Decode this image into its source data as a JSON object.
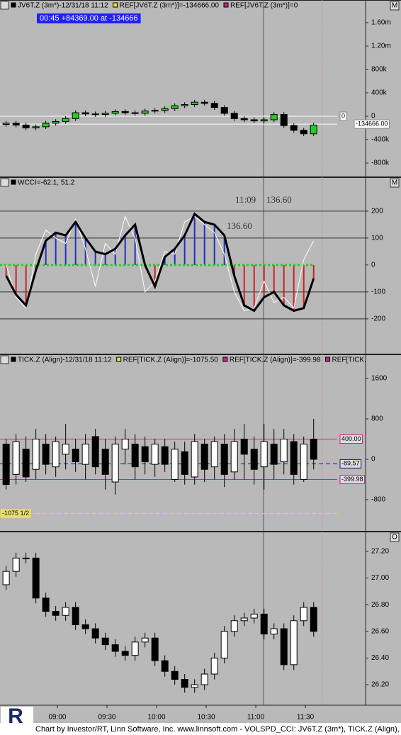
{
  "chart_data": [
    {
      "type": "candlestick",
      "header": [
        "JV6T.Z (3m*)-12/31/18 11:12",
        "REF[JV6T.Z (3m*)]=-134666.00",
        "REF[JV6T.Z (3m*)]=0"
      ],
      "status": "00:45  +84369.00 at -134666",
      "corner": "M",
      "xlim": [
        505.3,
        726.4
      ],
      "x": [
        509,
        515,
        521,
        527,
        533,
        539,
        545,
        551,
        557,
        563,
        569,
        575,
        581,
        587,
        593,
        599,
        605,
        611,
        617,
        623,
        629,
        635,
        641,
        647,
        653,
        659,
        665,
        671,
        677,
        683,
        689,
        695
      ],
      "open": [
        -140000,
        -120000,
        -150000,
        -200000,
        -180000,
        -120000,
        -90000,
        -40000,
        60000,
        40000,
        30000,
        50000,
        80000,
        60000,
        50000,
        90000,
        100000,
        130000,
        180000,
        200000,
        240000,
        220000,
        150000,
        50000,
        -40000,
        -60000,
        -80000,
        -60000,
        30000,
        -160000,
        -240000,
        -300000
      ],
      "high": [
        -80000,
        -80000,
        -110000,
        -140000,
        -80000,
        -50000,
        0,
        100000,
        100000,
        80000,
        90000,
        120000,
        120000,
        100000,
        130000,
        140000,
        170000,
        220000,
        240000,
        280000,
        280000,
        260000,
        190000,
        90000,
        0,
        -20000,
        -20000,
        70000,
        70000,
        -120000,
        -200000,
        -110000
      ],
      "low": [
        -180000,
        -190000,
        -240000,
        -240000,
        -220000,
        -160000,
        -130000,
        -80000,
        0,
        -10000,
        -10000,
        10000,
        20000,
        10000,
        10000,
        50000,
        60000,
        90000,
        140000,
        160000,
        180000,
        110000,
        10000,
        -80000,
        -100000,
        -120000,
        -120000,
        -100000,
        -200000,
        -280000,
        -340000,
        -340000
      ],
      "close": [
        -120000,
        -150000,
        -200000,
        -180000,
        -120000,
        -90000,
        -40000,
        60000,
        40000,
        30000,
        50000,
        80000,
        60000,
        50000,
        90000,
        100000,
        130000,
        180000,
        200000,
        240000,
        220000,
        150000,
        50000,
        -40000,
        -60000,
        -80000,
        -60000,
        30000,
        -160000,
        -240000,
        -300000,
        -150000
      ],
      "up_color": "#22cc22",
      "down_color": "#000000",
      "ylim": [
        -1042000,
        1818000
      ],
      "yticks": [
        {
          "value": 1600000,
          "label": "1.60m"
        },
        {
          "value": 1200000,
          "label": "1.20m"
        },
        {
          "value": 800000,
          "label": "800k"
        },
        {
          "value": 400000,
          "label": "400k"
        },
        0,
        {
          "value": -400000,
          "label": "-400k"
        },
        {
          "value": -800000,
          "label": "-800k"
        }
      ],
      "ref_lines": [
        {
          "value": 0,
          "label": "0",
          "color": "#ffffff"
        },
        {
          "value": -134666,
          "label": "-134666.00",
          "color": "#ffffff"
        }
      ]
    },
    {
      "type": "cci",
      "header": [
        "WCCI=-62.1,  51.2"
      ],
      "corner": "M",
      "annotations": [
        "11:09",
        "136.60",
        "136.60"
      ],
      "xlim": [
        505.3,
        726.4
      ],
      "x": [
        509,
        515,
        521,
        527,
        533,
        539,
        545,
        551,
        557,
        563,
        569,
        575,
        581,
        587,
        593,
        599,
        605,
        611,
        617,
        623,
        629,
        635,
        641,
        647,
        653,
        659,
        665,
        671,
        677,
        683,
        689,
        695
      ],
      "series": [
        {
          "name": "WCCI",
          "color": "#000000",
          "values": [
            -40,
            -110,
            -150,
            -20,
            90,
            120,
            110,
            160,
            100,
            50,
            40,
            60,
            110,
            150,
            0,
            -80,
            30,
            60,
            110,
            190,
            160,
            150,
            110,
            -40,
            -150,
            -170,
            -120,
            -100,
            -150,
            -170,
            -160,
            -50
          ]
        },
        {
          "name": "CCI",
          "color": "#ffffff",
          "values": [
            0,
            -120,
            -160,
            40,
            130,
            100,
            80,
            170,
            60,
            -80,
            80,
            40,
            180,
            100,
            -100,
            -60,
            50,
            40,
            160,
            180,
            150,
            120,
            40,
            -100,
            -170,
            -160,
            -60,
            -140,
            -120,
            -160,
            20,
            90
          ]
        }
      ],
      "pos_color": "#2030c0",
      "neg_color": "#d02020",
      "ylim": [
        -332,
        284
      ],
      "yticks": [
        200,
        100,
        0,
        -100,
        -200
      ]
    },
    {
      "type": "candlestick",
      "header": [
        "TICK.Z (Align)-12/31/18 11:12",
        "REF[TICK.Z (Align)]=-1075.50",
        "REF[TICK.Z (Align)]=-399.98",
        "REF[TICK."
      ],
      "xlim": [
        505.3,
        726.4
      ],
      "x": [
        509,
        515,
        521,
        527,
        533,
        539,
        545,
        551,
        557,
        563,
        569,
        575,
        581,
        587,
        593,
        599,
        605,
        611,
        617,
        623,
        629,
        635,
        641,
        647,
        653,
        659,
        665,
        671,
        677,
        683,
        689,
        695
      ],
      "open": [
        300,
        -300,
        200,
        -200,
        300,
        -150,
        100,
        200,
        -100,
        450,
        200,
        -450,
        200,
        300,
        250,
        -100,
        250,
        -400,
        150,
        -350,
        300,
        -150,
        300,
        -250,
        400,
        200,
        -150,
        300,
        -50,
        350,
        -400,
        400
      ],
      "high": [
        400,
        500,
        450,
        600,
        500,
        450,
        700,
        400,
        500,
        600,
        400,
        450,
        600,
        500,
        450,
        400,
        400,
        350,
        350,
        500,
        400,
        450,
        500,
        600,
        700,
        450,
        700,
        600,
        600,
        500,
        450,
        800
      ],
      "low": [
        -600,
        -500,
        -450,
        -400,
        -300,
        -350,
        -200,
        -250,
        -400,
        -300,
        -600,
        -700,
        -100,
        -400,
        -300,
        -350,
        -250,
        -450,
        -500,
        -500,
        -450,
        -400,
        -550,
        -400,
        -400,
        -500,
        -600,
        -400,
        -300,
        -500,
        -450,
        -200
      ],
      "close": [
        -500,
        350,
        -350,
        400,
        -100,
        350,
        300,
        -50,
        300,
        -150,
        -300,
        300,
        400,
        -150,
        -50,
        300,
        -100,
        200,
        -300,
        350,
        -200,
        350,
        -300,
        350,
        100,
        -200,
        350,
        -100,
        400,
        -300,
        300,
        0
      ],
      "up_color": "#ffffff",
      "down_color": "#000000",
      "ylim": [
        -1432,
        1881
      ],
      "yticks": [
        1600,
        800,
        0,
        -800
      ],
      "ref_lines": [
        {
          "value": 400,
          "label": "400.00",
          "color": "#d0208a"
        },
        {
          "value": -89.57,
          "label": "-89.57",
          "color": "#1010a0"
        },
        {
          "value": -399.98,
          "label": "-399.98",
          "color": "#d0208a"
        },
        {
          "value": -1075.5,
          "label": "-1075 1/2",
          "color": "#e8e020"
        }
      ]
    },
    {
      "type": "candlestick",
      "corner": "O",
      "xlim": [
        505.3,
        726.4
      ],
      "x": [
        509,
        515,
        521,
        527,
        533,
        539,
        545,
        551,
        557,
        563,
        569,
        575,
        581,
        587,
        593,
        599,
        605,
        611,
        617,
        623,
        629,
        635,
        641,
        647,
        653,
        659,
        665,
        671,
        677,
        683,
        689,
        695
      ],
      "open": [
        26.95,
        27.05,
        27.15,
        27.15,
        26.85,
        26.75,
        26.72,
        26.78,
        26.65,
        26.62,
        26.55,
        26.5,
        26.45,
        26.42,
        26.52,
        26.55,
        26.38,
        26.3,
        26.24,
        26.18,
        26.2,
        26.28,
        26.4,
        26.6,
        26.68,
        26.7,
        26.73,
        26.58,
        26.62,
        26.35,
        26.68,
        26.78
      ],
      "high": [
        27.09,
        27.19,
        27.19,
        27.19,
        26.89,
        26.79,
        26.82,
        26.82,
        26.69,
        26.66,
        26.59,
        26.54,
        26.49,
        26.56,
        26.59,
        26.59,
        26.42,
        26.34,
        26.28,
        26.24,
        26.32,
        26.44,
        26.64,
        26.72,
        26.74,
        26.77,
        26.77,
        26.66,
        26.66,
        26.72,
        26.82,
        26.82
      ],
      "low": [
        26.91,
        27.01,
        27.11,
        26.81,
        26.71,
        26.68,
        26.68,
        26.61,
        26.58,
        26.51,
        26.46,
        26.41,
        26.38,
        26.38,
        26.48,
        26.34,
        26.26,
        26.2,
        26.14,
        26.14,
        26.16,
        26.24,
        26.36,
        26.56,
        26.64,
        26.66,
        26.54,
        26.54,
        26.31,
        26.31,
        26.64,
        26.56
      ],
      "close": [
        27.05,
        27.15,
        27.15,
        26.85,
        26.75,
        26.72,
        26.78,
        26.65,
        26.62,
        26.55,
        26.5,
        26.45,
        26.42,
        26.52,
        26.55,
        26.38,
        26.3,
        26.24,
        26.18,
        26.2,
        26.28,
        26.4,
        26.6,
        26.68,
        26.7,
        26.73,
        26.58,
        26.62,
        26.35,
        26.68,
        26.78,
        26.6
      ],
      "up_color": "#ffffff",
      "down_color": "#000000",
      "ylim": [
        26.046,
        27.338
      ],
      "yticks": [
        {
          "value": 27.2,
          "label": "27.20"
        },
        {
          "value": 27,
          "label": "27.00"
        },
        {
          "value": 26.8,
          "label": "26.80"
        },
        {
          "value": 26.6,
          "label": "26.60"
        },
        {
          "value": 26.4,
          "label": "26.40"
        },
        {
          "value": 26.2,
          "label": "26.20"
        }
      ],
      "xticks": [
        {
          "value": 540,
          "label": "09:00"
        },
        {
          "value": 570,
          "label": "09:30"
        },
        {
          "value": 600,
          "label": "10:00"
        },
        {
          "value": 630,
          "label": "10:30"
        },
        {
          "value": 660,
          "label": "11:00"
        },
        {
          "value": 690,
          "label": "11:30"
        }
      ]
    }
  ],
  "footer": "Chart by Investor/RT, Linn Software, Inc. www.linnsoft.com - VOLSPD_CCI: JV6T.Z (3m*), TICK.Z (Align),",
  "logo": "R"
}
